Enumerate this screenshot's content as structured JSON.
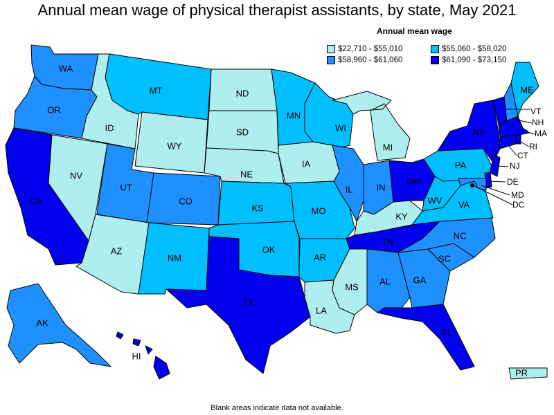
{
  "title": "Annual mean wage of physical therapist assistants, by state, May 2021",
  "legend": {
    "title": "Annual mean wage",
    "items": [
      {
        "label": "$22,710 - $55,010",
        "color": "#aeeeee"
      },
      {
        "label": "$55,060 - $58,020",
        "color": "#00bfff"
      },
      {
        "label": "$58,960 - $61,060",
        "color": "#1e90ff"
      },
      {
        "label": "$61,090 - $73,150",
        "color": "#0000ee"
      }
    ]
  },
  "footnote": "Blank areas indicate data not available.",
  "states": [
    {
      "abbr": "WA",
      "tier": 2
    },
    {
      "abbr": "OR",
      "tier": 2
    },
    {
      "abbr": "CA",
      "tier": 3
    },
    {
      "abbr": "ID",
      "tier": 0
    },
    {
      "abbr": "NV",
      "tier": 0
    },
    {
      "abbr": "AZ",
      "tier": 0
    },
    {
      "abbr": "UT",
      "tier": 2
    },
    {
      "abbr": "MT",
      "tier": 1
    },
    {
      "abbr": "WY",
      "tier": 0
    },
    {
      "abbr": "CO",
      "tier": 2
    },
    {
      "abbr": "NM",
      "tier": 1
    },
    {
      "abbr": "ND",
      "tier": 0
    },
    {
      "abbr": "SD",
      "tier": 0
    },
    {
      "abbr": "NE",
      "tier": 0
    },
    {
      "abbr": "KS",
      "tier": 1
    },
    {
      "abbr": "OK",
      "tier": 1
    },
    {
      "abbr": "TX",
      "tier": 3
    },
    {
      "abbr": "MN",
      "tier": 1
    },
    {
      "abbr": "IA",
      "tier": 0
    },
    {
      "abbr": "MO",
      "tier": 1
    },
    {
      "abbr": "AR",
      "tier": 1
    },
    {
      "abbr": "LA",
      "tier": 0
    },
    {
      "abbr": "WI",
      "tier": 1
    },
    {
      "abbr": "IL",
      "tier": 2
    },
    {
      "abbr": "MS",
      "tier": 0
    },
    {
      "abbr": "MI",
      "tier": 0
    },
    {
      "abbr": "IN",
      "tier": 2
    },
    {
      "abbr": "KY",
      "tier": 0
    },
    {
      "abbr": "TN",
      "tier": 3
    },
    {
      "abbr": "AL",
      "tier": 2
    },
    {
      "abbr": "OH",
      "tier": 3
    },
    {
      "abbr": "GA",
      "tier": 2
    },
    {
      "abbr": "FL",
      "tier": 3
    },
    {
      "abbr": "SC",
      "tier": 2
    },
    {
      "abbr": "NC",
      "tier": 2
    },
    {
      "abbr": "VA",
      "tier": 1
    },
    {
      "abbr": "WV",
      "tier": 1
    },
    {
      "abbr": "PA",
      "tier": 1
    },
    {
      "abbr": "NY",
      "tier": 3
    },
    {
      "abbr": "VT",
      "tier": 3
    },
    {
      "abbr": "NH",
      "tier": 2
    },
    {
      "abbr": "ME",
      "tier": 1
    },
    {
      "abbr": "MA",
      "tier": 3
    },
    {
      "abbr": "RI",
      "tier": 3
    },
    {
      "abbr": "CT",
      "tier": 3
    },
    {
      "abbr": "NJ",
      "tier": 3
    },
    {
      "abbr": "DE",
      "tier": 3
    },
    {
      "abbr": "MD",
      "tier": 2
    },
    {
      "abbr": "DC",
      "tier": 3
    },
    {
      "abbr": "AK",
      "tier": 2
    },
    {
      "abbr": "HI",
      "tier": 3
    },
    {
      "abbr": "PR",
      "tier": 0
    }
  ]
}
